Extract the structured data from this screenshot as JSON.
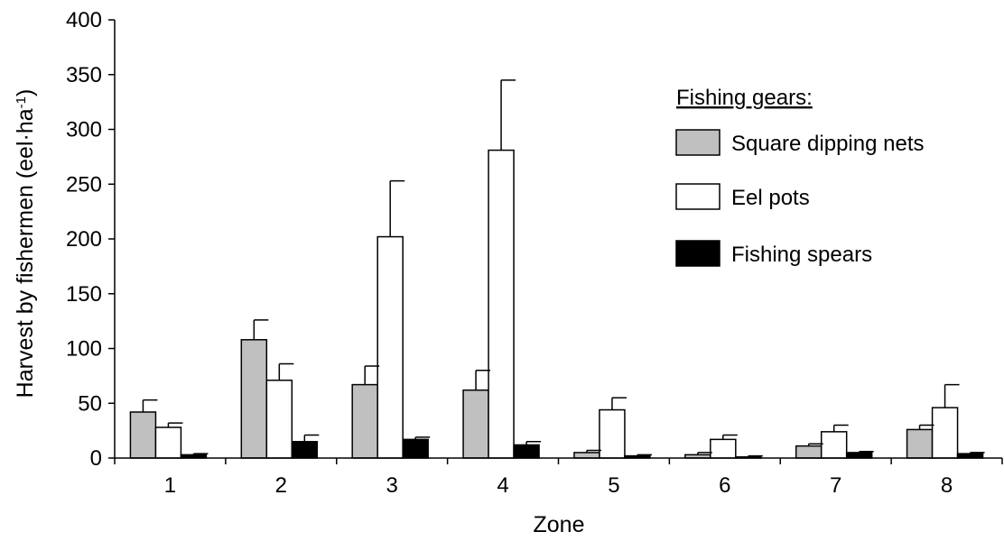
{
  "chart_data": {
    "type": "bar",
    "title": "",
    "xlabel": "Zone",
    "ylabel": "Harvest by fishermen (eel·ha",
    "ylabel_superscript": "-1",
    "ylabel_close": ")",
    "ylim": [
      0,
      400
    ],
    "yticks": [
      0,
      50,
      100,
      150,
      200,
      250,
      300,
      350,
      400
    ],
    "categories": [
      "1",
      "2",
      "3",
      "4",
      "5",
      "6",
      "7",
      "8"
    ],
    "legend_title": "Fishing gears:",
    "legend_position": "right",
    "grid": false,
    "series": [
      {
        "name": "Square dipping nets",
        "color": "#c0c0c0",
        "values": [
          42,
          108,
          67,
          62,
          5,
          3,
          11,
          26
        ],
        "errors": [
          11,
          18,
          17,
          18,
          2,
          2,
          2,
          4
        ]
      },
      {
        "name": "Eel pots",
        "color": "#ffffff",
        "values": [
          28,
          71,
          202,
          281,
          44,
          17,
          24,
          46
        ],
        "errors": [
          4,
          15,
          51,
          64,
          11,
          4,
          6,
          21
        ]
      },
      {
        "name": "Fishing spears",
        "color": "#000000",
        "values": [
          3,
          15,
          17,
          12,
          2,
          1,
          5,
          4
        ],
        "errors": [
          1,
          6,
          2,
          3,
          1,
          1,
          1,
          1
        ]
      }
    ]
  }
}
